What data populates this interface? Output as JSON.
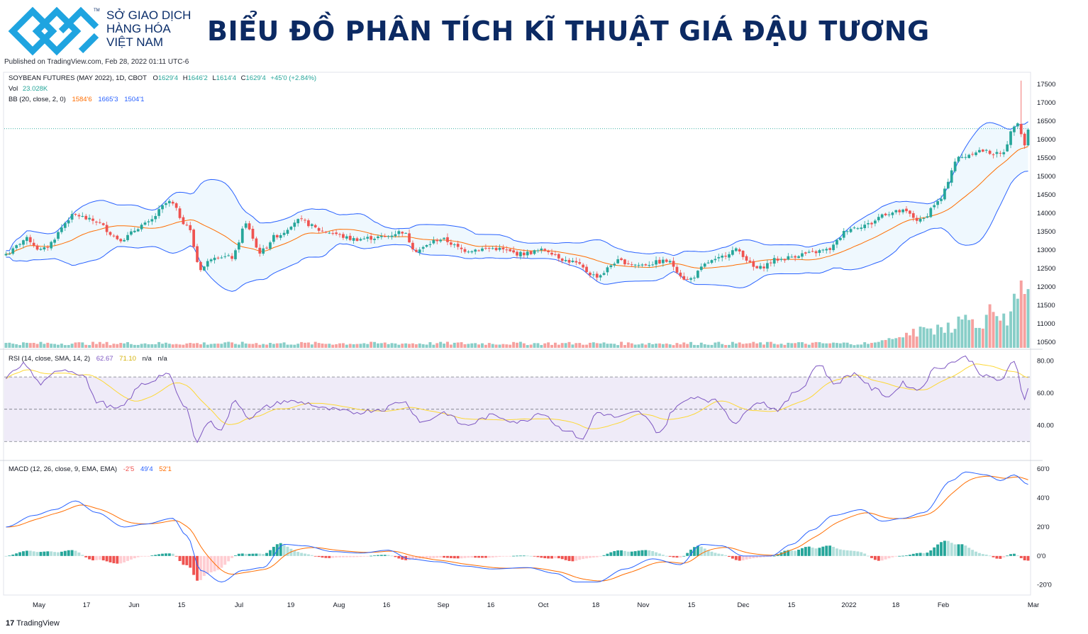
{
  "header": {
    "brand_lines": [
      "SỞ GIAO DỊCH",
      "HÀNG HÓA",
      "VIỆT NAM"
    ],
    "tm": "TM",
    "title": "BIỂU ĐỒ PHÂN TÍCH KĨ THUẬT GIÁ ĐẬU TƯƠNG",
    "published": "Published on TradingView.com, Feb 28, 2022 01:11 UTC-6"
  },
  "legend": {
    "symbol": "SOYBEAN FUTURES (MAY 2022), 1D, CBOT",
    "o_label": "O",
    "o": "1629'4",
    "h_label": "H",
    "h": "1646'2",
    "l_label": "L",
    "l": "1614'4",
    "c_label": "C",
    "c": "1629'4",
    "change": "+45'0 (+2.84%)",
    "vol_label": "Vol",
    "vol": "23.028K",
    "bb_label": "BB (20, close, 2, 0)",
    "bb_basis": "1584'6",
    "bb_upper": "1665'3",
    "bb_lower": "1504'1",
    "rsi_label": "RSI (14, close, SMA, 14, 2)",
    "rsi": "62.67",
    "rsi_ma": "71.10",
    "rsi_na1": "n/a",
    "rsi_na2": "n/a",
    "macd_label": "MACD (12, 26, close, 9, EMA, EMA)",
    "macd_hist": "-2'5",
    "macd": "49'4",
    "macd_signal": "52'1"
  },
  "footer": {
    "logo": "17",
    "text": "TradingView"
  },
  "colors": {
    "up": "#26a69a",
    "down": "#ef5350",
    "bb": "#2962ff",
    "bb_basis": "#ff6d00",
    "rsi": "#7e57c2",
    "rsi_ma": "#ffd740",
    "macd": "#2962ff",
    "signal": "#ff6d00",
    "title": "#0c2a63"
  },
  "chart_data": {
    "type": "candlestick",
    "x_tick_labels": [
      "May",
      "17",
      "Jun",
      "15",
      "Jul",
      "19",
      "Aug",
      "16",
      "Sep",
      "16",
      "Oct",
      "18",
      "Nov",
      "15",
      "Dec",
      "15",
      "2022",
      "18",
      "Feb",
      "Mar"
    ],
    "price_axis": {
      "ticks": [
        "17500",
        "17000",
        "16500",
        "16000",
        "15500",
        "15000",
        "14500",
        "14000",
        "13500",
        "13000",
        "12500",
        "12000",
        "11500",
        "11000",
        "10500"
      ],
      "range": [
        10500,
        17500
      ]
    },
    "rsi_axis": {
      "ticks": [
        "80.00",
        "60.00",
        "40.00"
      ],
      "range": [
        20,
        85
      ],
      "bands": [
        70,
        50,
        30
      ]
    },
    "macd_axis": {
      "ticks": [
        "60'0",
        "40'0",
        "20'0",
        "0'0",
        "-20'0"
      ],
      "range": [
        -26,
        64
      ]
    },
    "price_anchors": [
      {
        "x": 0,
        "y": 12900
      },
      {
        "x": 6,
        "y": 13300
      },
      {
        "x": 10,
        "y": 13000
      },
      {
        "x": 20,
        "y": 13950
      },
      {
        "x": 25,
        "y": 13800
      },
      {
        "x": 33,
        "y": 13300
      },
      {
        "x": 40,
        "y": 13700
      },
      {
        "x": 47,
        "y": 14300
      },
      {
        "x": 52,
        "y": 13700
      },
      {
        "x": 56,
        "y": 12500
      },
      {
        "x": 60,
        "y": 12850
      },
      {
        "x": 65,
        "y": 12800
      },
      {
        "x": 69,
        "y": 13700
      },
      {
        "x": 73,
        "y": 12950
      },
      {
        "x": 78,
        "y": 13400
      },
      {
        "x": 84,
        "y": 13800
      },
      {
        "x": 92,
        "y": 13500
      },
      {
        "x": 100,
        "y": 13300
      },
      {
        "x": 108,
        "y": 13350
      },
      {
        "x": 114,
        "y": 13500
      },
      {
        "x": 118,
        "y": 13000
      },
      {
        "x": 125,
        "y": 13300
      },
      {
        "x": 132,
        "y": 13000
      },
      {
        "x": 140,
        "y": 13050
      },
      {
        "x": 148,
        "y": 12900
      },
      {
        "x": 155,
        "y": 13000
      },
      {
        "x": 162,
        "y": 12700
      },
      {
        "x": 170,
        "y": 12300
      },
      {
        "x": 176,
        "y": 12700
      },
      {
        "x": 182,
        "y": 12600
      },
      {
        "x": 190,
        "y": 12700
      },
      {
        "x": 196,
        "y": 12200
      },
      {
        "x": 203,
        "y": 12700
      },
      {
        "x": 210,
        "y": 13000
      },
      {
        "x": 216,
        "y": 12500
      },
      {
        "x": 222,
        "y": 12750
      },
      {
        "x": 230,
        "y": 12900
      },
      {
        "x": 236,
        "y": 13000
      },
      {
        "x": 243,
        "y": 13600
      },
      {
        "x": 248,
        "y": 13700
      },
      {
        "x": 253,
        "y": 14000
      },
      {
        "x": 258,
        "y": 14050
      },
      {
        "x": 263,
        "y": 13800
      },
      {
        "x": 268,
        "y": 14300
      },
      {
        "x": 274,
        "y": 15500
      },
      {
        "x": 280,
        "y": 15700
      },
      {
        "x": 286,
        "y": 15600
      },
      {
        "x": 291,
        "y": 16500
      },
      {
        "x": 293,
        "y": 15850
      },
      {
        "x": 294,
        "y": 16295
      }
    ],
    "rsi_anchors": [
      {
        "x": 0,
        "y": 70
      },
      {
        "x": 5,
        "y": 78
      },
      {
        "x": 10,
        "y": 66
      },
      {
        "x": 16,
        "y": 75
      },
      {
        "x": 22,
        "y": 72
      },
      {
        "x": 26,
        "y": 55
      },
      {
        "x": 32,
        "y": 50
      },
      {
        "x": 40,
        "y": 66
      },
      {
        "x": 46,
        "y": 72
      },
      {
        "x": 52,
        "y": 50
      },
      {
        "x": 55,
        "y": 30
      },
      {
        "x": 58,
        "y": 42
      },
      {
        "x": 62,
        "y": 38
      },
      {
        "x": 66,
        "y": 55
      },
      {
        "x": 70,
        "y": 45
      },
      {
        "x": 76,
        "y": 52
      },
      {
        "x": 80,
        "y": 55
      },
      {
        "x": 86,
        "y": 54
      },
      {
        "x": 92,
        "y": 50
      },
      {
        "x": 100,
        "y": 48
      },
      {
        "x": 108,
        "y": 50
      },
      {
        "x": 114,
        "y": 55
      },
      {
        "x": 120,
        "y": 42
      },
      {
        "x": 126,
        "y": 48
      },
      {
        "x": 132,
        "y": 40
      },
      {
        "x": 140,
        "y": 46
      },
      {
        "x": 148,
        "y": 42
      },
      {
        "x": 154,
        "y": 48
      },
      {
        "x": 160,
        "y": 38
      },
      {
        "x": 166,
        "y": 32
      },
      {
        "x": 170,
        "y": 48
      },
      {
        "x": 176,
        "y": 45
      },
      {
        "x": 182,
        "y": 48
      },
      {
        "x": 188,
        "y": 36
      },
      {
        "x": 193,
        "y": 52
      },
      {
        "x": 198,
        "y": 58
      },
      {
        "x": 204,
        "y": 55
      },
      {
        "x": 210,
        "y": 42
      },
      {
        "x": 216,
        "y": 55
      },
      {
        "x": 222,
        "y": 50
      },
      {
        "x": 228,
        "y": 62
      },
      {
        "x": 234,
        "y": 78
      },
      {
        "x": 238,
        "y": 66
      },
      {
        "x": 244,
        "y": 72
      },
      {
        "x": 250,
        "y": 62
      },
      {
        "x": 254,
        "y": 58
      },
      {
        "x": 258,
        "y": 66
      },
      {
        "x": 262,
        "y": 62
      },
      {
        "x": 268,
        "y": 76
      },
      {
        "x": 276,
        "y": 82
      },
      {
        "x": 282,
        "y": 70
      },
      {
        "x": 286,
        "y": 68
      },
      {
        "x": 290,
        "y": 79
      },
      {
        "x": 293,
        "y": 57
      },
      {
        "x": 294,
        "y": 62.67
      }
    ],
    "macd_anchors": [
      {
        "x": 0,
        "y": 20
      },
      {
        "x": 8,
        "y": 28
      },
      {
        "x": 14,
        "y": 32
      },
      {
        "x": 20,
        "y": 38
      },
      {
        "x": 26,
        "y": 30
      },
      {
        "x": 34,
        "y": 20
      },
      {
        "x": 40,
        "y": 22
      },
      {
        "x": 48,
        "y": 26
      },
      {
        "x": 52,
        "y": 14
      },
      {
        "x": 56,
        "y": -10
      },
      {
        "x": 62,
        "y": -18
      },
      {
        "x": 68,
        "y": -10
      },
      {
        "x": 74,
        "y": -8
      },
      {
        "x": 80,
        "y": 8
      },
      {
        "x": 86,
        "y": 7
      },
      {
        "x": 94,
        "y": 3
      },
      {
        "x": 102,
        "y": 2
      },
      {
        "x": 110,
        "y": 4
      },
      {
        "x": 116,
        "y": -2
      },
      {
        "x": 124,
        "y": -4
      },
      {
        "x": 132,
        "y": -7
      },
      {
        "x": 140,
        "y": -9
      },
      {
        "x": 150,
        "y": -8
      },
      {
        "x": 158,
        "y": -12
      },
      {
        "x": 164,
        "y": -18
      },
      {
        "x": 170,
        "y": -18
      },
      {
        "x": 178,
        "y": -9
      },
      {
        "x": 186,
        "y": -2
      },
      {
        "x": 194,
        "y": -6
      },
      {
        "x": 200,
        "y": 8
      },
      {
        "x": 206,
        "y": 7
      },
      {
        "x": 212,
        "y": 0
      },
      {
        "x": 220,
        "y": 0
      },
      {
        "x": 226,
        "y": 8
      },
      {
        "x": 232,
        "y": 18
      },
      {
        "x": 238,
        "y": 28
      },
      {
        "x": 246,
        "y": 32
      },
      {
        "x": 252,
        "y": 24
      },
      {
        "x": 258,
        "y": 26
      },
      {
        "x": 264,
        "y": 30
      },
      {
        "x": 272,
        "y": 52
      },
      {
        "x": 276,
        "y": 58
      },
      {
        "x": 282,
        "y": 56
      },
      {
        "x": 286,
        "y": 52
      },
      {
        "x": 290,
        "y": 56
      },
      {
        "x": 294,
        "y": 49.4
      }
    ],
    "candles": 295
  }
}
